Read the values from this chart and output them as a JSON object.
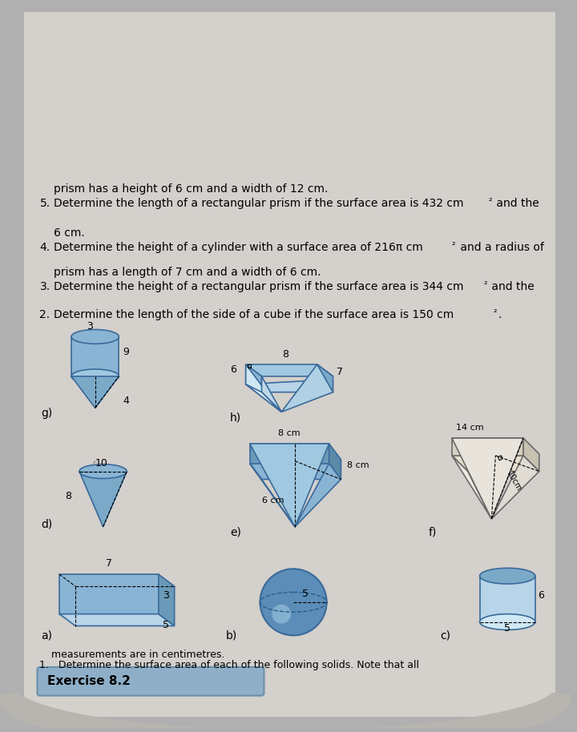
{
  "title": "Exercise 8.2",
  "background_color": "#d8d8d8",
  "page_background": "#c8c8c8",
  "header_box_color": "#7a9abf",
  "q1_text": "1.   Determine the surface area of each of the following solids. Note that all\n      measurements are in centimetres.",
  "q2_text": "2.   Determine the length of the side of a cube if the surface area is 150 cm².",
  "q3_text": "3.   Determine the height of a rectangular prism if the surface area is 344 cm² and the\n      prism has a length of 7 cm and a width of 6 cm.",
  "q4_text": "4.   Determine the height of a cylinder with a surface area of 216π cm² and a radius of\n      6 cm.",
  "q5_text": "5.   Determine the length of a rectangular prism if the surface area is 432 cm² and the\n      prism has a height of 6 cm and a width of 12 cm.",
  "shape_blue": "#5b8db8",
  "shape_blue_light": "#8ab4d4",
  "shape_blue_dark": "#3a6a9a"
}
